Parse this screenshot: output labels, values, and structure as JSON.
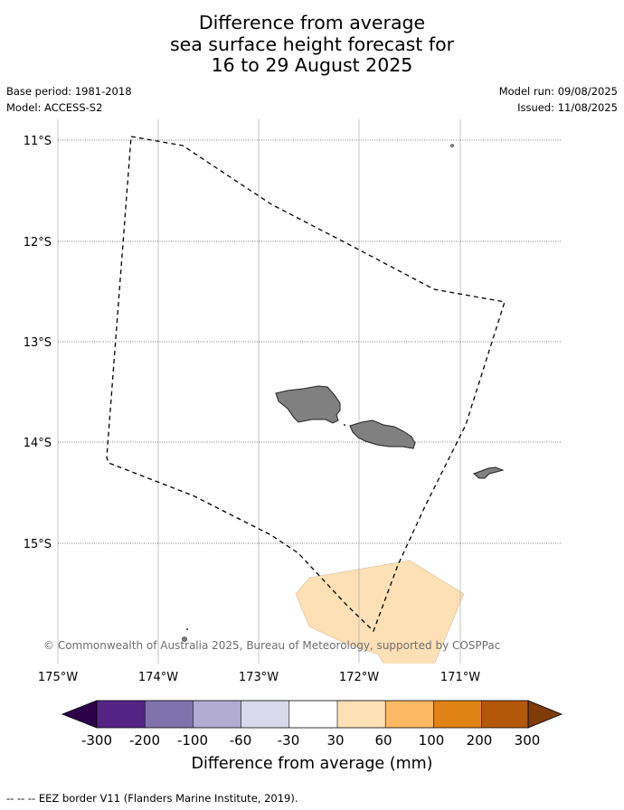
{
  "title": {
    "line1": "Difference from average",
    "line2": "sea surface height forecast for",
    "line3": "16 to 29 August 2025"
  },
  "meta": {
    "base_period": "Base period: 1981-2018",
    "model": "Model: ACCESS-S2",
    "model_run": "Model run: 09/08/2025",
    "issued": "Issued: 11/08/2025"
  },
  "map": {
    "lat_ticks": [
      "11°S",
      "12°S",
      "13°S",
      "14°S",
      "15°S"
    ],
    "lon_ticks": [
      "175°W",
      "174°W",
      "173°W",
      "172°W",
      "171°W"
    ],
    "copyright": "© Commonwealth of Australia 2025, Bureau of Meteorology, supported by COSPPac",
    "land_color": "#808080",
    "anomaly_patch": {
      "color": "#fee0b6",
      "range_mm": "30 to 60"
    }
  },
  "colorbar": {
    "label": "Difference from average (mm)",
    "ticks": [
      "-300",
      "-200",
      "-100",
      "-60",
      "-30",
      "30",
      "60",
      "100",
      "200",
      "300"
    ],
    "colors": [
      "#552384",
      "#8072ad",
      "#b2abd2",
      "#d8daeb",
      "#ffffff",
      "#fee0b6",
      "#fdb863",
      "#e08214",
      "#b35806"
    ],
    "extend_low_color": "#2d004b",
    "extend_high_color": "#7f3b08"
  },
  "legend": {
    "line_symbol": "--  --  --",
    "eez_label": "EEZ border V11 (Flanders Marine Institute, 2019)."
  }
}
